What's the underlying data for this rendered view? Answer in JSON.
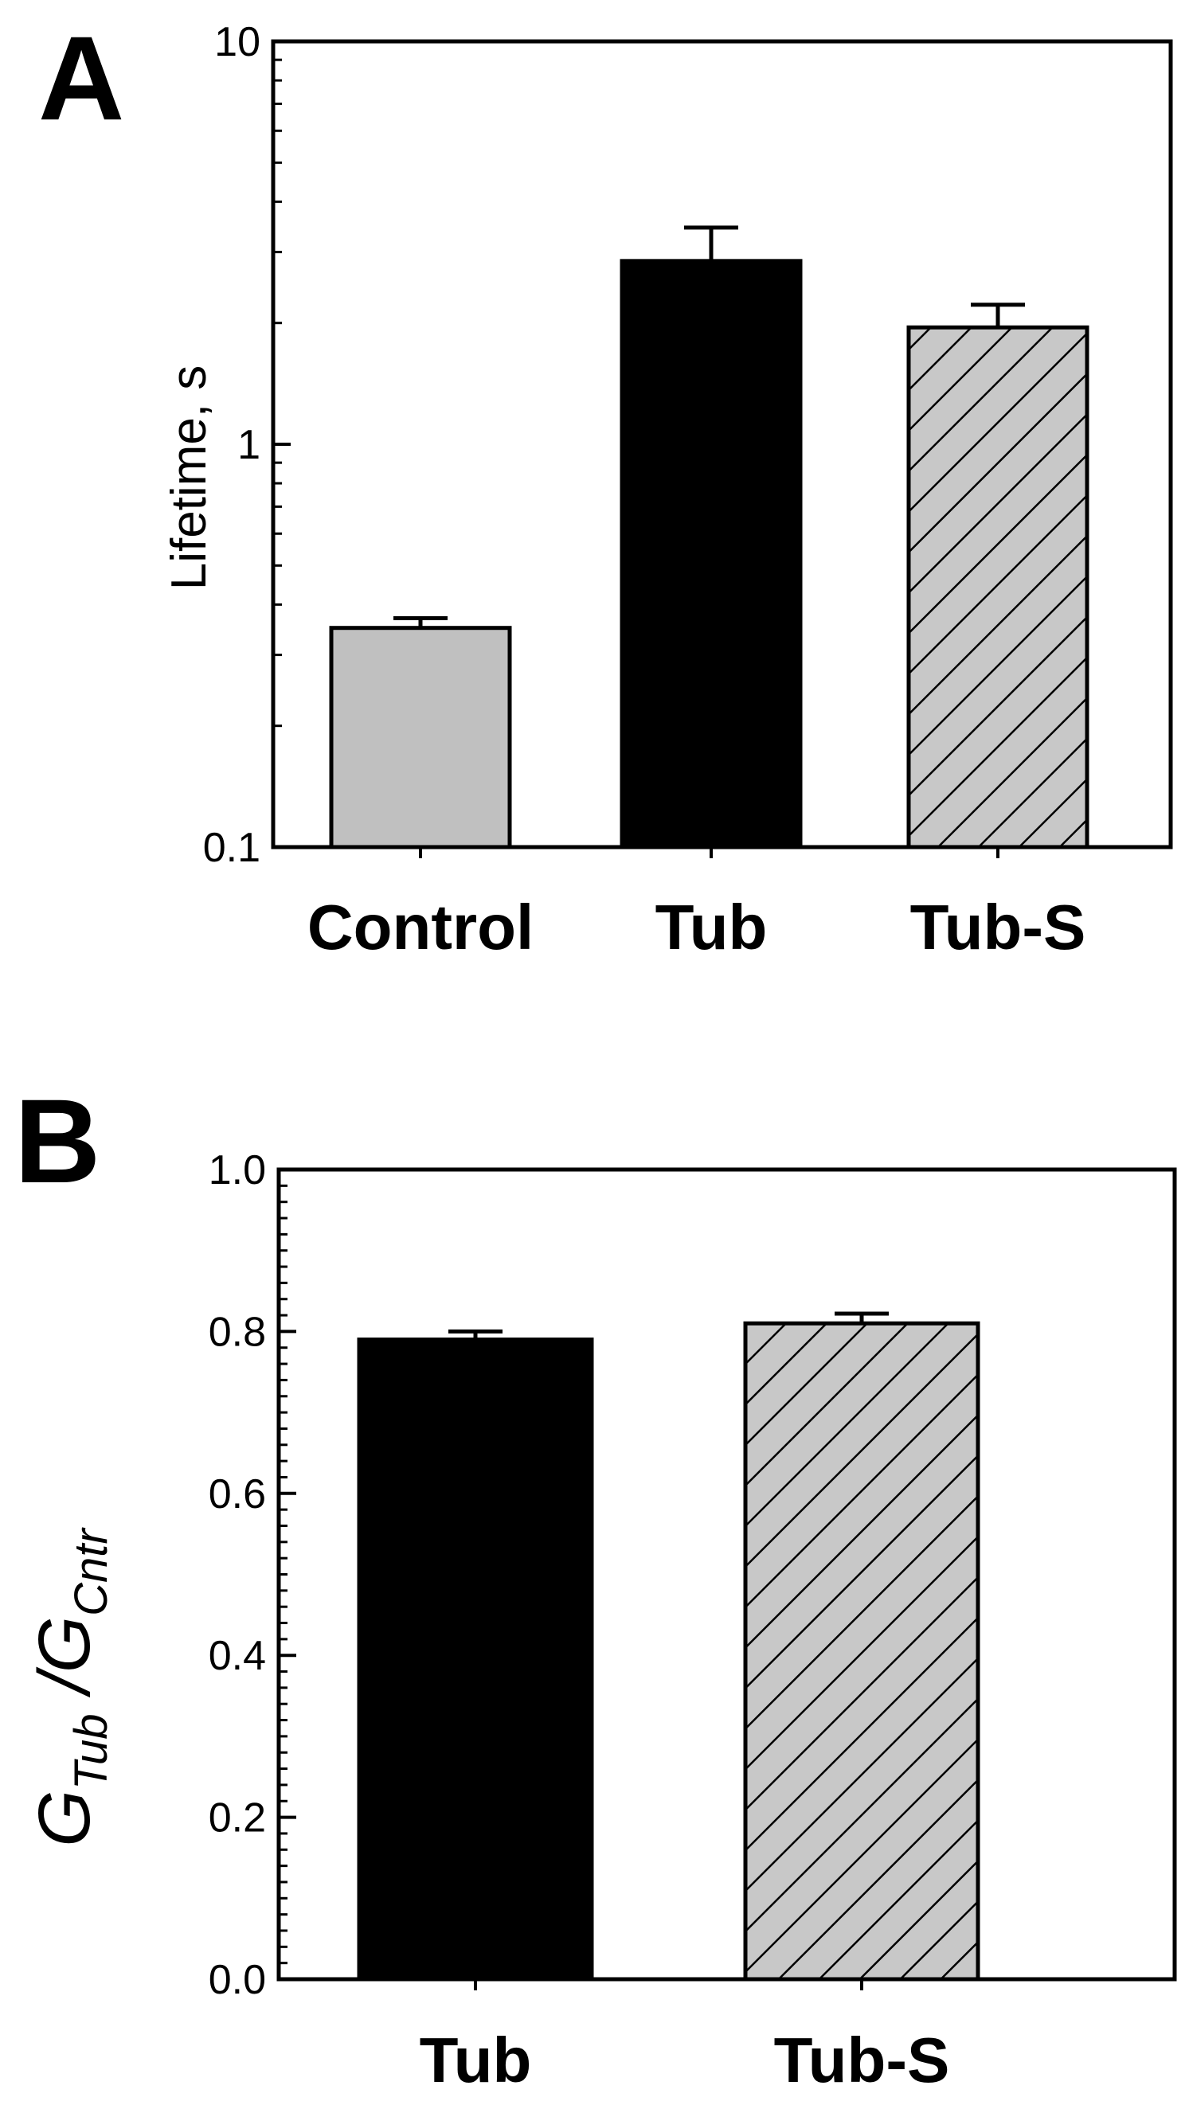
{
  "chart_data": [
    {
      "panel_label": "A",
      "type": "bar",
      "ylabel": "Lifetime, s",
      "yscale": "log",
      "ylim": [
        0.1,
        10
      ],
      "yticks": [
        {
          "value": 0.1,
          "label": "0.1"
        },
        {
          "value": 1,
          "label": "1"
        },
        {
          "value": 10,
          "label": "10"
        }
      ],
      "categories": [
        "Control",
        "Tub",
        "Tub-S"
      ],
      "values": [
        0.35,
        2.85,
        1.95
      ],
      "errors": [
        0.02,
        0.6,
        0.27
      ],
      "fills": [
        "#c0c0c0",
        "#000000",
        "hatched"
      ],
      "grid": false
    },
    {
      "panel_label": "B",
      "type": "bar",
      "ylabel": {
        "main": "G",
        "sub1": "Tub",
        "sep": " /G",
        "sub2": "Cntr"
      },
      "yscale": "linear",
      "ylim": [
        0,
        1.0
      ],
      "yticks": [
        {
          "value": 0,
          "label": "0.0"
        },
        {
          "value": 0.2,
          "label": "0.2"
        },
        {
          "value": 0.4,
          "label": "0.4"
        },
        {
          "value": 0.6,
          "label": "0.6"
        },
        {
          "value": 0.8,
          "label": "0.8"
        },
        {
          "value": 1.0,
          "label": "1.0"
        }
      ],
      "categories": [
        "Tub",
        "Tub-S"
      ],
      "values": [
        0.79,
        0.81
      ],
      "errors": [
        0.01,
        0.012
      ],
      "fills": [
        "#000000",
        "hatched"
      ],
      "grid": false
    }
  ]
}
